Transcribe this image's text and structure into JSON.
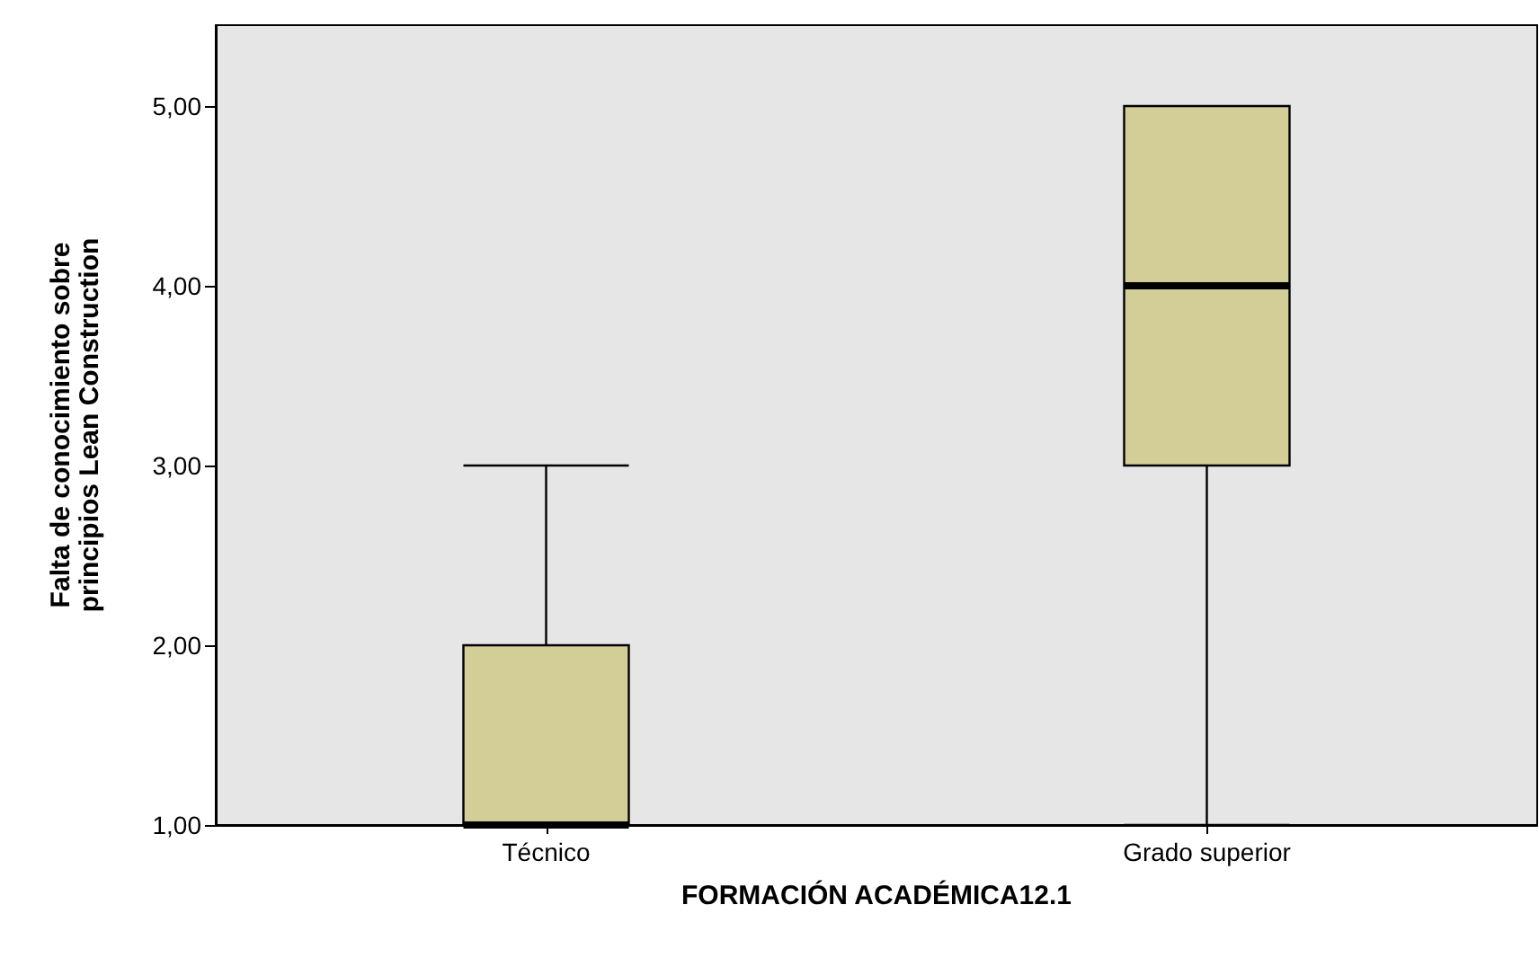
{
  "chart_data": {
    "type": "box",
    "xlabel": "FORMACIÓN ACADÉMICA12.1",
    "ylabel": "Falta de conocimiento sobre\nprincipios Lean Construction",
    "categories": [
      "Técnico",
      "Grado superior"
    ],
    "boxes": [
      {
        "low": 1,
        "q1": 1,
        "median": 1,
        "q3": 2,
        "high": 3
      },
      {
        "low": 1,
        "q1": 3,
        "median": 4,
        "q3": 5,
        "high": 5
      }
    ],
    "color": "#d3ce97",
    "ylim": [
      1,
      5.45
    ],
    "yticks": [
      {
        "value": 1,
        "label": "1,00"
      },
      {
        "value": 2,
        "label": "2,00"
      },
      {
        "value": 3,
        "label": "3,00"
      },
      {
        "value": 4,
        "label": "4,00"
      },
      {
        "value": 5,
        "label": "5,00"
      }
    ],
    "grid": false
  }
}
